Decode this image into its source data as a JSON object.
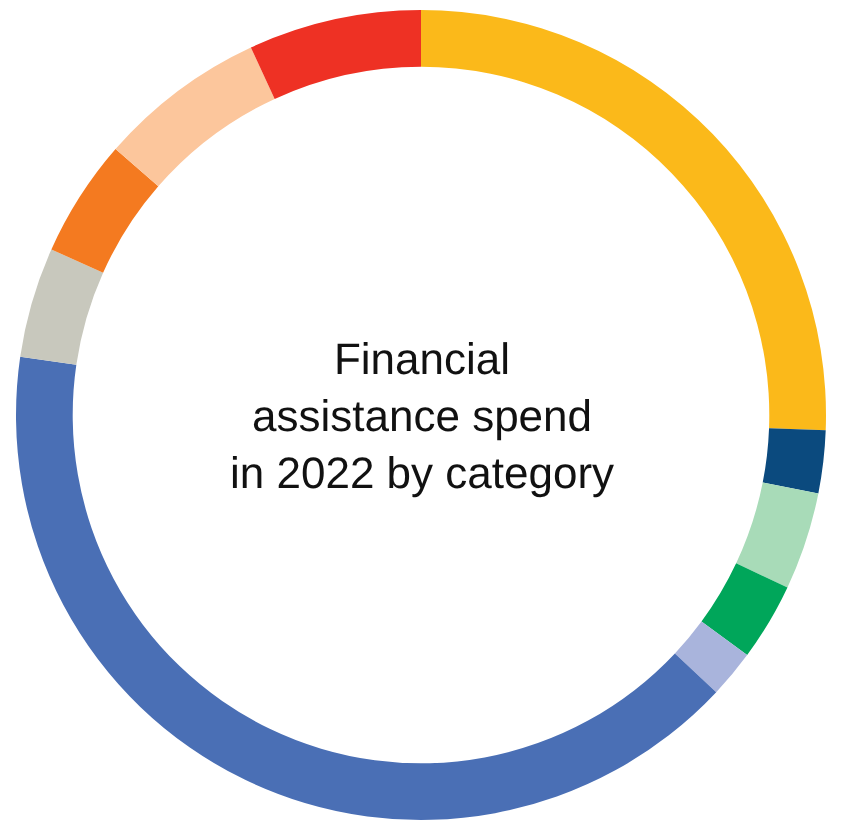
{
  "chart_data": {
    "type": "donut",
    "title": "Financial\nassistance spend\nin 2022 by category",
    "categories": [
      null,
      null,
      null,
      null,
      null,
      null,
      null,
      null,
      null,
      null
    ],
    "values": [
      25.6,
      2.5,
      3.9,
      3.1,
      1.9,
      40.3,
      4.4,
      4.7,
      6.7,
      6.9
    ],
    "colors": [
      "#fbb91a",
      "#0b4a7e",
      "#a8dbb8",
      "#00a65a",
      "#a9b4dc",
      "#4a6fb5",
      "#c8c8bd",
      "#f47a20",
      "#fcc69c",
      "#ee3124"
    ],
    "legend": false
  }
}
